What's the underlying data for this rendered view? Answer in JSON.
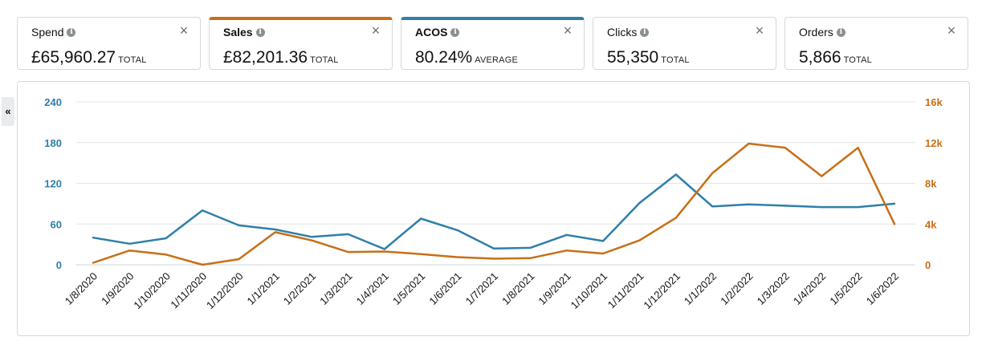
{
  "metrics": [
    {
      "name": "Spend",
      "value": "£65,960.27",
      "unit": "TOTAL",
      "selected": false
    },
    {
      "name": "Sales",
      "value": "£82,201.36",
      "unit": "TOTAL",
      "selected": true
    },
    {
      "name": "ACOS",
      "value": "80.24%",
      "unit": "AVERAGE",
      "selected": true
    },
    {
      "name": "Clicks",
      "value": "55,350",
      "unit": "TOTAL",
      "selected": false
    },
    {
      "name": "Orders",
      "value": "5,866",
      "unit": "TOTAL",
      "selected": false
    }
  ],
  "icons": {
    "info": "info-icon",
    "close": "close-icon",
    "collapse": "double-chevron-left-icon"
  },
  "collapse_label": "«",
  "close_label": "×",
  "info_label": "i",
  "colors": {
    "acos": "#2f7fa8",
    "sales": "#c86f17",
    "grid": "#e3e6e6"
  },
  "chart_data": {
    "type": "line",
    "categories": [
      "1/8/2020",
      "1/9/2020",
      "1/10/2020",
      "1/11/2020",
      "1/12/2020",
      "1/1/2021",
      "1/2/2021",
      "1/3/2021",
      "1/4/2021",
      "1/5/2021",
      "1/6/2021",
      "1/7/2021",
      "1/8/2021",
      "1/9/2021",
      "1/10/2021",
      "1/11/2021",
      "1/12/2021",
      "1/1/2022",
      "1/2/2022",
      "1/3/2022",
      "1/4/2022",
      "1/5/2022",
      "1/6/2022"
    ],
    "left_axis": {
      "ticks": [
        "240",
        "180",
        "120",
        "60",
        "0"
      ],
      "range": [
        0,
        240
      ]
    },
    "right_axis": {
      "ticks": [
        "16k",
        "12k",
        "8k",
        "4k",
        "0"
      ],
      "range": [
        0,
        16000
      ]
    },
    "series": [
      {
        "name": "ACOS",
        "axis": "left",
        "values": [
          40,
          31,
          39,
          80,
          58,
          52,
          41,
          45,
          23,
          68,
          51,
          24,
          25,
          44,
          35,
          91,
          133,
          86,
          89,
          87,
          85,
          85,
          90
        ]
      },
      {
        "name": "Sales",
        "axis": "right",
        "values": [
          200,
          1400,
          1000,
          0,
          550,
          3200,
          2400,
          1250,
          1300,
          1050,
          750,
          600,
          650,
          1400,
          1100,
          2400,
          4600,
          9000,
          11900,
          11500,
          8700,
          11500,
          4000
        ]
      }
    ]
  }
}
